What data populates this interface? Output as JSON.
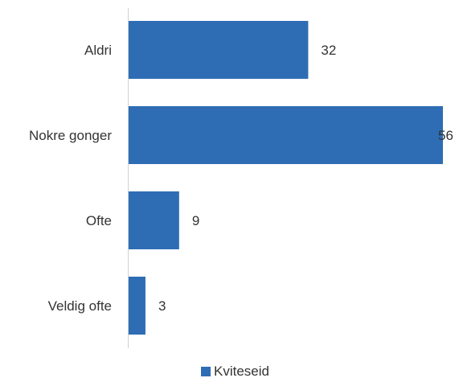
{
  "chart_data": {
    "type": "bar",
    "orientation": "horizontal",
    "categories": [
      "Aldri",
      "Nokre gonger",
      "Ofte",
      "Veldig ofte"
    ],
    "series": [
      {
        "name": "Kviteseid",
        "values": [
          32,
          56,
          9,
          3
        ],
        "color": "#2e6db4"
      }
    ],
    "data_labels": [
      "32",
      "56",
      "9",
      "3"
    ],
    "title": "",
    "xlabel": "",
    "ylabel": "",
    "xlim": [
      0,
      56
    ],
    "grid": false,
    "legend_position": "bottom"
  }
}
